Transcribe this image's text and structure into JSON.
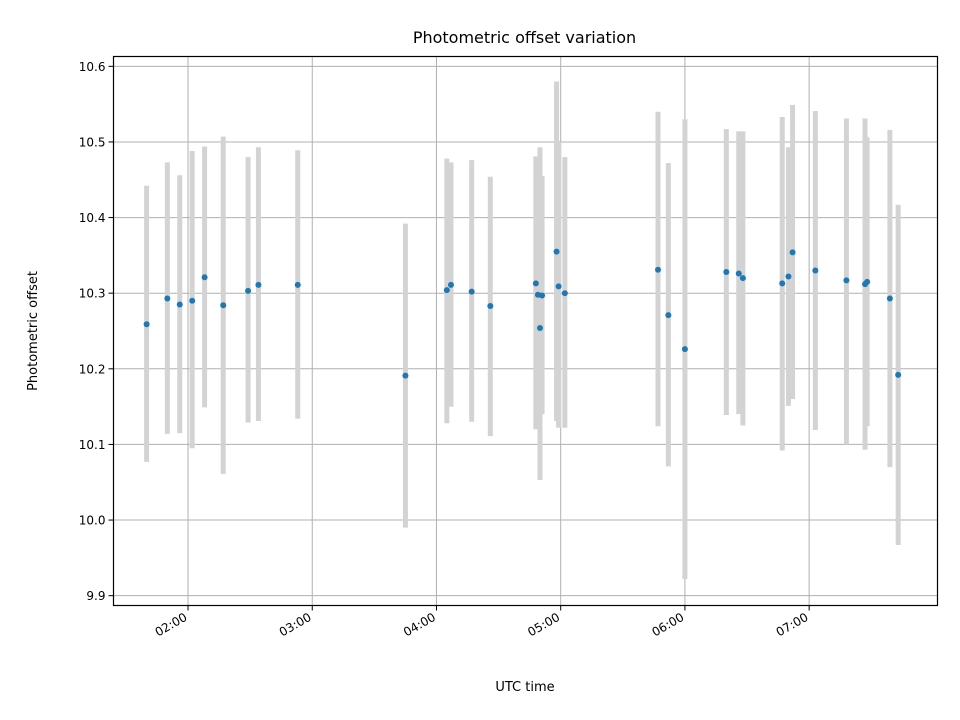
{
  "chart_data": {
    "type": "scatter",
    "title": "Photometric offset variation",
    "xlabel": "UTC time",
    "ylabel": "Photometric offset",
    "xlim": [
      "01:24",
      "08:02"
    ],
    "ylim": [
      9.887,
      10.613
    ],
    "grid": true,
    "x_ticks": [
      "02:00",
      "03:00",
      "04:00",
      "05:00",
      "06:00",
      "07:00"
    ],
    "y_ticks": [
      "9.9",
      "10.0",
      "10.1",
      "10.2",
      "10.3",
      "10.4",
      "10.5",
      "10.6"
    ],
    "colors": {
      "marker": "#1f77b4",
      "errorbar": "#d3d3d3",
      "grid": "#b0b0b0"
    },
    "points": [
      {
        "x": "01:40",
        "y": 10.259,
        "ylo": 10.077,
        "yhi": 10.442
      },
      {
        "x": "01:50",
        "y": 10.293,
        "ylo": 10.114,
        "yhi": 10.473
      },
      {
        "x": "01:56",
        "y": 10.285,
        "ylo": 10.115,
        "yhi": 10.456
      },
      {
        "x": "02:02",
        "y": 10.29,
        "ylo": 10.095,
        "yhi": 10.488
      },
      {
        "x": "02:08",
        "y": 10.321,
        "ylo": 10.149,
        "yhi": 10.494
      },
      {
        "x": "02:17",
        "y": 10.284,
        "ylo": 10.061,
        "yhi": 10.507
      },
      {
        "x": "02:29",
        "y": 10.303,
        "ylo": 10.129,
        "yhi": 10.48
      },
      {
        "x": "02:34",
        "y": 10.311,
        "ylo": 10.131,
        "yhi": 10.493
      },
      {
        "x": "02:53",
        "y": 10.311,
        "ylo": 10.134,
        "yhi": 10.489
      },
      {
        "x": "03:45",
        "y": 10.191,
        "ylo": 9.99,
        "yhi": 10.392
      },
      {
        "x": "04:05",
        "y": 10.304,
        "ylo": 10.128,
        "yhi": 10.478
      },
      {
        "x": "04:07",
        "y": 10.311,
        "ylo": 10.15,
        "yhi": 10.473
      },
      {
        "x": "04:17",
        "y": 10.302,
        "ylo": 10.13,
        "yhi": 10.476
      },
      {
        "x": "04:26",
        "y": 10.283,
        "ylo": 10.111,
        "yhi": 10.454
      },
      {
        "x": "04:48",
        "y": 10.313,
        "ylo": 10.12,
        "yhi": 10.481
      },
      {
        "x": "04:49",
        "y": 10.298,
        "ylo": 10.122,
        "yhi": 10.473
      },
      {
        "x": "04:50",
        "y": 10.254,
        "ylo": 10.053,
        "yhi": 10.493
      },
      {
        "x": "04:51",
        "y": 10.297,
        "ylo": 10.14,
        "yhi": 10.455
      },
      {
        "x": "04:58",
        "y": 10.355,
        "ylo": 10.131,
        "yhi": 10.58
      },
      {
        "x": "04:59",
        "y": 10.309,
        "ylo": 10.122,
        "yhi": 10.5
      },
      {
        "x": "05:02",
        "y": 10.3,
        "ylo": 10.122,
        "yhi": 10.48
      },
      {
        "x": "05:47",
        "y": 10.331,
        "ylo": 10.124,
        "yhi": 10.54
      },
      {
        "x": "05:52",
        "y": 10.271,
        "ylo": 10.071,
        "yhi": 10.472
      },
      {
        "x": "06:00",
        "y": 10.226,
        "ylo": 9.922,
        "yhi": 10.53
      },
      {
        "x": "06:20",
        "y": 10.328,
        "ylo": 10.139,
        "yhi": 10.517
      },
      {
        "x": "06:26",
        "y": 10.326,
        "ylo": 10.14,
        "yhi": 10.514
      },
      {
        "x": "06:28",
        "y": 10.32,
        "ylo": 10.125,
        "yhi": 10.514
      },
      {
        "x": "06:47",
        "y": 10.313,
        "ylo": 10.092,
        "yhi": 10.533
      },
      {
        "x": "06:50",
        "y": 10.322,
        "ylo": 10.151,
        "yhi": 10.493
      },
      {
        "x": "06:52",
        "y": 10.354,
        "ylo": 10.16,
        "yhi": 10.549
      },
      {
        "x": "07:03",
        "y": 10.33,
        "ylo": 10.119,
        "yhi": 10.541
      },
      {
        "x": "07:18",
        "y": 10.317,
        "ylo": 10.1,
        "yhi": 10.531
      },
      {
        "x": "07:27",
        "y": 10.312,
        "ylo": 10.093,
        "yhi": 10.531
      },
      {
        "x": "07:28",
        "y": 10.315,
        "ylo": 10.124,
        "yhi": 10.506
      },
      {
        "x": "07:39",
        "y": 10.293,
        "ylo": 10.07,
        "yhi": 10.516
      },
      {
        "x": "07:43",
        "y": 10.192,
        "ylo": 9.967,
        "yhi": 10.417
      }
    ]
  }
}
